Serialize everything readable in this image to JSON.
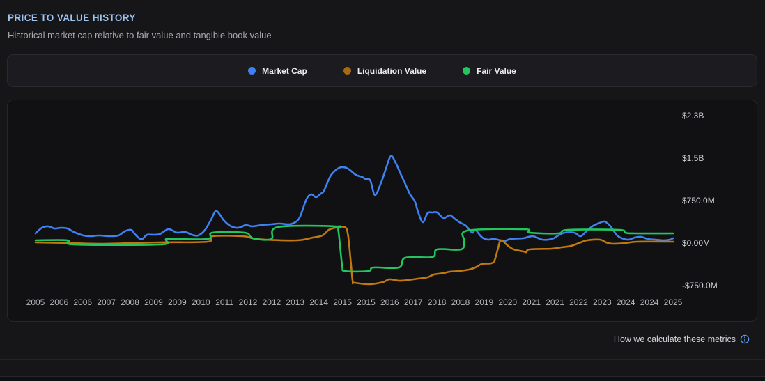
{
  "header": {
    "title": "PRICE TO VALUE HISTORY",
    "subtitle": "Historical market cap relative to fair value and tangible book value"
  },
  "legend": {
    "items": [
      {
        "label": "Market Cap",
        "color": "#3e82f2",
        "icon": "series-color-dot-icon"
      },
      {
        "label": "Liquidation Value",
        "color": "#a9690e",
        "icon": "series-color-dot-icon"
      },
      {
        "label": "Fair Value",
        "color": "#22c55e",
        "icon": "series-color-dot-icon"
      }
    ]
  },
  "footer": {
    "link_label": "How we calculate these metrics",
    "icon": "info-circle-icon",
    "icon_color": "#5b9cf6"
  },
  "theme": {
    "accent_blue": "#3e82f2",
    "accent_orange": "#c0790f",
    "accent_green": "#22c55e",
    "title_color": "#9ec5f2"
  },
  "chart_data": {
    "type": "line",
    "title": "Price to Value History",
    "xlabel": "",
    "ylabel": "",
    "units": "USD millions",
    "grid": false,
    "legend_position": "top",
    "x_axis": {
      "range_years": [
        2005,
        2025
      ],
      "labels": [
        "2005",
        "2006",
        "2006",
        "2007",
        "2008",
        "2009",
        "2009",
        "2010",
        "2011",
        "2012",
        "2012",
        "2013",
        "2014",
        "2015",
        "2015",
        "2016",
        "2017",
        "2018",
        "2018",
        "2019",
        "2020",
        "2021",
        "2021",
        "2022",
        "2023",
        "2024",
        "2024",
        "2025"
      ]
    },
    "y_axis": {
      "side": "right",
      "ticks": [
        {
          "label": "$2.3B",
          "value": 2250
        },
        {
          "label": "$1.5B",
          "value": 1500
        },
        {
          "label": "$750.0M",
          "value": 750
        },
        {
          "label": "$0.00M",
          "value": 0
        },
        {
          "label": "-$750.0M",
          "value": -750
        }
      ]
    },
    "series": [
      {
        "name": "Market Cap",
        "color": "#3e82f2",
        "points": [
          [
            2005.0,
            172
          ],
          [
            2005.2,
            270
          ],
          [
            2005.4,
            295
          ],
          [
            2005.6,
            258
          ],
          [
            2005.8,
            270
          ],
          [
            2006.0,
            258
          ],
          [
            2006.2,
            197
          ],
          [
            2006.5,
            135
          ],
          [
            2006.7,
            123
          ],
          [
            2007.0,
            135
          ],
          [
            2007.3,
            123
          ],
          [
            2007.6,
            135
          ],
          [
            2007.8,
            209
          ],
          [
            2008.0,
            234
          ],
          [
            2008.1,
            172
          ],
          [
            2008.25,
            86
          ],
          [
            2008.35,
            74
          ],
          [
            2008.5,
            148
          ],
          [
            2008.7,
            148
          ],
          [
            2008.9,
            160
          ],
          [
            2009.15,
            246
          ],
          [
            2009.3,
            221
          ],
          [
            2009.45,
            184
          ],
          [
            2009.7,
            197
          ],
          [
            2009.9,
            148
          ],
          [
            2010.1,
            135
          ],
          [
            2010.3,
            221
          ],
          [
            2010.5,
            406
          ],
          [
            2010.65,
            566
          ],
          [
            2010.8,
            492
          ],
          [
            2010.9,
            406
          ],
          [
            2011.1,
            307
          ],
          [
            2011.3,
            270
          ],
          [
            2011.45,
            283
          ],
          [
            2011.6,
            320
          ],
          [
            2011.8,
            295
          ],
          [
            2012.1,
            320
          ],
          [
            2012.4,
            332
          ],
          [
            2012.65,
            344
          ],
          [
            2012.95,
            332
          ],
          [
            2013.15,
            369
          ],
          [
            2013.3,
            467
          ],
          [
            2013.5,
            775
          ],
          [
            2013.65,
            861
          ],
          [
            2013.8,
            812
          ],
          [
            2013.95,
            873
          ],
          [
            2014.05,
            922
          ],
          [
            2014.25,
            1180
          ],
          [
            2014.45,
            1303
          ],
          [
            2014.6,
            1340
          ],
          [
            2014.8,
            1316
          ],
          [
            2015.05,
            1205
          ],
          [
            2015.25,
            1168
          ],
          [
            2015.35,
            1131
          ],
          [
            2015.5,
            1107
          ],
          [
            2015.65,
            848
          ],
          [
            2015.85,
            1082
          ],
          [
            2016.0,
            1328
          ],
          [
            2016.15,
            1537
          ],
          [
            2016.3,
            1414
          ],
          [
            2016.45,
            1230
          ],
          [
            2016.6,
            1045
          ],
          [
            2016.75,
            861
          ],
          [
            2016.9,
            738
          ],
          [
            2017.0,
            553
          ],
          [
            2017.15,
            369
          ],
          [
            2017.3,
            529
          ],
          [
            2017.45,
            541
          ],
          [
            2017.6,
            541
          ],
          [
            2017.8,
            443
          ],
          [
            2018.0,
            492
          ],
          [
            2018.15,
            430
          ],
          [
            2018.3,
            369
          ],
          [
            2018.5,
            307
          ],
          [
            2018.65,
            209
          ],
          [
            2018.72,
            184
          ],
          [
            2018.8,
            234
          ],
          [
            2018.95,
            135
          ],
          [
            2019.05,
            86
          ],
          [
            2019.2,
            61
          ],
          [
            2019.4,
            74
          ],
          [
            2019.7,
            37
          ],
          [
            2019.9,
            74
          ],
          [
            2020.3,
            86
          ],
          [
            2020.6,
            123
          ],
          [
            2020.9,
            61
          ],
          [
            2021.2,
            74
          ],
          [
            2021.4,
            135
          ],
          [
            2021.6,
            184
          ],
          [
            2021.9,
            184
          ],
          [
            2022.1,
            123
          ],
          [
            2022.3,
            221
          ],
          [
            2022.5,
            307
          ],
          [
            2022.7,
            356
          ],
          [
            2022.85,
            381
          ],
          [
            2023.0,
            320
          ],
          [
            2023.1,
            246
          ],
          [
            2023.25,
            135
          ],
          [
            2023.4,
            86
          ],
          [
            2023.6,
            61
          ],
          [
            2023.8,
            98
          ],
          [
            2024.0,
            111
          ],
          [
            2024.2,
            74
          ],
          [
            2024.45,
            61
          ],
          [
            2024.7,
            49
          ],
          [
            2024.9,
            61
          ],
          [
            2025.0,
            86
          ]
        ]
      },
      {
        "name": "Liquidation Value",
        "color": "#c0790f",
        "points": [
          [
            2005.0,
            12
          ],
          [
            2006.1,
            0
          ],
          [
            2007.1,
            -12
          ],
          [
            2008.9,
            12
          ],
          [
            2010.4,
            25
          ],
          [
            2010.55,
            123
          ],
          [
            2011.5,
            123
          ],
          [
            2011.8,
            86
          ],
          [
            2012.2,
            61
          ],
          [
            2013.2,
            49
          ],
          [
            2013.7,
            98
          ],
          [
            2014.0,
            135
          ],
          [
            2014.2,
            234
          ],
          [
            2014.4,
            270
          ],
          [
            2014.7,
            283
          ],
          [
            2014.8,
            160
          ],
          [
            2014.88,
            -270
          ],
          [
            2014.95,
            -676
          ],
          [
            2015.0,
            -700
          ],
          [
            2015.5,
            -725
          ],
          [
            2015.9,
            -688
          ],
          [
            2016.1,
            -639
          ],
          [
            2016.4,
            -664
          ],
          [
            2016.7,
            -651
          ],
          [
            2017.0,
            -627
          ],
          [
            2017.3,
            -602
          ],
          [
            2017.5,
            -553
          ],
          [
            2017.8,
            -529
          ],
          [
            2018.0,
            -504
          ],
          [
            2018.3,
            -492
          ],
          [
            2018.6,
            -467
          ],
          [
            2018.8,
            -430
          ],
          [
            2019.0,
            -369
          ],
          [
            2019.3,
            -357
          ],
          [
            2019.4,
            -307
          ],
          [
            2019.5,
            -111
          ],
          [
            2019.6,
            49
          ],
          [
            2019.8,
            -37
          ],
          [
            2020.0,
            -111
          ],
          [
            2020.3,
            -147
          ],
          [
            2020.4,
            -160
          ],
          [
            2020.5,
            -111
          ],
          [
            2021.2,
            -98
          ],
          [
            2021.5,
            -74
          ],
          [
            2021.8,
            -49
          ],
          [
            2022.1,
            12
          ],
          [
            2022.3,
            49
          ],
          [
            2022.7,
            61
          ],
          [
            2022.9,
            12
          ],
          [
            2023.1,
            -12
          ],
          [
            2023.5,
            0
          ],
          [
            2023.9,
            25
          ],
          [
            2025.0,
            25
          ]
        ]
      },
      {
        "name": "Fair Value",
        "color": "#22c55e",
        "points": [
          [
            2005.0,
            49
          ],
          [
            2006.0,
            49
          ],
          [
            2006.2,
            -25
          ],
          [
            2008.9,
            -25
          ],
          [
            2009.1,
            49
          ],
          [
            2009.2,
            74
          ],
          [
            2010.4,
            74
          ],
          [
            2010.55,
            184
          ],
          [
            2011.55,
            184
          ],
          [
            2011.75,
            111
          ],
          [
            2011.9,
            74
          ],
          [
            2012.4,
            74
          ],
          [
            2012.6,
            283
          ],
          [
            2014.4,
            295
          ],
          [
            2014.5,
            221
          ],
          [
            2014.62,
            -393
          ],
          [
            2014.72,
            -492
          ],
          [
            2015.45,
            -492
          ],
          [
            2015.6,
            -430
          ],
          [
            2016.4,
            -430
          ],
          [
            2016.6,
            -258
          ],
          [
            2017.45,
            -246
          ],
          [
            2017.6,
            -111
          ],
          [
            2018.35,
            -111
          ],
          [
            2018.45,
            37
          ],
          [
            2018.55,
            221
          ],
          [
            2020.35,
            246
          ],
          [
            2020.5,
            184
          ],
          [
            2021.4,
            172
          ],
          [
            2021.7,
            234
          ],
          [
            2023.3,
            234
          ],
          [
            2023.5,
            184
          ],
          [
            2023.8,
            172
          ],
          [
            2025.0,
            172
          ]
        ]
      }
    ]
  }
}
